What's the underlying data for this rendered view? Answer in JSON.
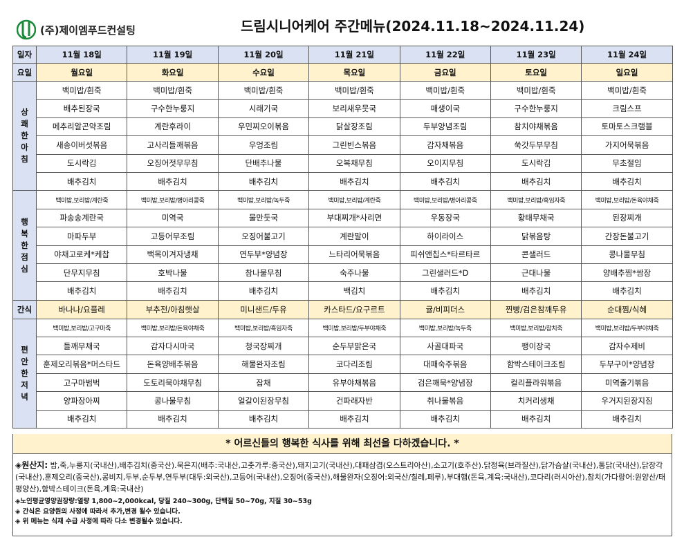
{
  "header": {
    "company": "(주)제이엠푸드컨설팅",
    "title": "드림시니어케어 주간메뉴(2024.11.18~2024.11.24)",
    "logo_color": "#1a8a3a"
  },
  "colors": {
    "label_bg": "#d9e1f2",
    "day_bg": "#fff2cc",
    "notice_bg": "#fff2cc"
  },
  "table": {
    "col_date": "일자",
    "col_day": "요일",
    "dates": [
      "11월 18일",
      "11월 19일",
      "11월 20일",
      "11월 21일",
      "11월 22일",
      "11월 23일",
      "11월 24일"
    ],
    "days": [
      "월요일",
      "화요일",
      "수요일",
      "목요일",
      "금요일",
      "토요일",
      "일요일"
    ],
    "breakfast": {
      "label": "상\n쾌\n한\n아\n침",
      "rows": [
        [
          "백미밥/흰죽",
          "백미밥/흰죽",
          "백미밥/흰죽",
          "백미밥/흰죽",
          "백미밥/흰죽",
          "백미밥/흰죽",
          "백미밥/흰죽"
        ],
        [
          "배추된장국",
          "구수한누룽지",
          "시래기국",
          "보리새우뭇국",
          "매생이국",
          "구수한누룽지",
          "크림스프"
        ],
        [
          "메추리알곤약조림",
          "계란후라이",
          "우민찌오이볶음",
          "닭살장조림",
          "두부양념조림",
          "참치야채볶음",
          "토마토스크램블"
        ],
        [
          "새송이버섯볶음",
          "고사리들깨볶음",
          "우엉조림",
          "그린빈스볶음",
          "감자채볶음",
          "쑥갓두부무침",
          "가지어묵볶음"
        ],
        [
          "도시락김",
          "오징어젓무무침",
          "단배추나물",
          "오복채무침",
          "오이지무침",
          "도시락김",
          "무초절임"
        ],
        [
          "배추김치",
          "배추김치",
          "배추김치",
          "배추김치",
          "배추김치",
          "배추김치",
          "배추김치"
        ]
      ]
    },
    "lunch": {
      "label": "행\n복\n한\n점\n심",
      "rows": [
        [
          "백미밥,보리밥/계란죽",
          "백미밥,보리밥/병아리콩죽",
          "백미밥,보리밥/녹두죽",
          "백미밥,보리밥/계란죽",
          "백미밥,보리밥/병아리콩죽",
          "백미밥,보리밥/흑임자죽",
          "백미밥,보리밥/돈육야채죽"
        ],
        [
          "파송송계란국",
          "미역국",
          "물만둣국",
          "부대찌개*사리면",
          "우동장국",
          "황태무채국",
          "된장찌개"
        ],
        [
          "마파두부",
          "고등어무조림",
          "오징어불고기",
          "계란말이",
          "하이라이스",
          "닭볶음탕",
          "간장돈불고기"
        ],
        [
          "야채고로케*케찹",
          "백목이겨자냉채",
          "연두부*양념장",
          "느타리어묵볶음",
          "피쉬앤칩스*타르타르",
          "콘샐러드",
          "콩나물무침"
        ],
        [
          "단무지무침",
          "호박나물",
          "참나물무침",
          "숙주나물",
          "그린샐러드*D",
          "근대나물",
          "양배추찜*쌈장"
        ],
        [
          "배추김치",
          "배추김치",
          "배추김치",
          "백김치",
          "배추김치",
          "배추김치",
          "배추김치"
        ]
      ]
    },
    "snack": {
      "label": "간식",
      "items": [
        "바나나/요플레",
        "부추전/아침햇살",
        "미니샌드/두유",
        "카스타드/요구르트",
        "귤/비피더스",
        "찐빵/검은참깨두유",
        "순대찜/식혜"
      ]
    },
    "dinner": {
      "label": "편\n안\n한\n저\n녁",
      "rows": [
        [
          "백미밥,보리밥/고구마죽",
          "백미밥,보리밥/돈육야채죽",
          "백미밥,보리밥/흑임자죽",
          "백미밥,보리밥/두부야채죽",
          "백미밥,보리밥/녹두죽",
          "백미밥,보리밥/참치죽",
          "백미밥,보리밥/두부야채죽"
        ],
        [
          "들깨무채국",
          "감자다시마국",
          "청국장찌개",
          "순두부맑은국",
          "사골대파국",
          "팽이장국",
          "감자수제비"
        ],
        [
          "훈제오리볶음*머스타드",
          "돈육양배추볶음",
          "해물완자조림",
          "코다리조림",
          "대패숙주볶음",
          "함박스테이크조림",
          "두부구이*양념장"
        ],
        [
          "고구마범벅",
          "도토리묵야채무침",
          "잡채",
          "유부야채볶음",
          "검은깨묵*양념장",
          "컬리플라워볶음",
          "미역줄기볶음"
        ],
        [
          "양파장아찌",
          "콩나물무침",
          "얼갈이된장무침",
          "건파래자반",
          "취나물볶음",
          "치커리생채",
          "우거지된장지짐"
        ],
        [
          "배추김치",
          "배추김치",
          "배추김치",
          "배추김치",
          "배추김치",
          "배추김치",
          "배추김치"
        ]
      ]
    }
  },
  "notice": "* 어르신들의 행복한 식사를 위해 최선을 다하겠습니다. *",
  "footer": {
    "origin_label": "◈원산지:",
    "origin_text": " 밥,죽,누룽지(국내산),배추김치(중국산).묵은지(배추:국내산,고춧가루:중국산),돼지고기(국내산),대패삼겹(오스트리아산),소고기(호주산).닭정육(브라질산),닭가슴살(국내산),통닭(국내산),닭장각(국내산),훈제오리(중국산),콩비지,두부,순두부,연두부(대두:외국산),고등어(국내산),오징어(중국산),해물완자(오징어:외국산/칠레,페루),부대햄(돈육,계육:국내산),코다리(러시아산),참치(가다랑어:원양산/태평양산),함박스테이크(돈육,계육:국내산)",
    "notes": [
      "◈노인평균영양권장량:열량 1,800~2,000kcal, 당질 240~300g, 단백질 50~70g, 지질 30~53g",
      "◈ 간식은 요양원의 사정에 따라서 추가,변경 될수 있습니다.",
      "◈ 위 메뉴는 식재 수급 사정에 따라 다소 변경될수 있습니다."
    ]
  }
}
